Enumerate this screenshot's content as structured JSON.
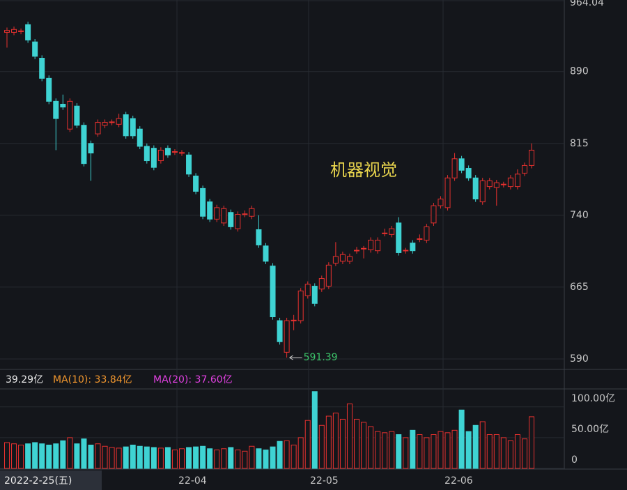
{
  "chart_data": {
    "type": "candlestick",
    "title": "机器视觉",
    "open": [
      931,
      931,
      932,
      939,
      921,
      904,
      883,
      859,
      856,
      830,
      854,
      834,
      815,
      825,
      834,
      837,
      835,
      845,
      841,
      830,
      812,
      810,
      797,
      810,
      806,
      805,
      803,
      781,
      768,
      754,
      736,
      732,
      743,
      726,
      741,
      739,
      725,
      708,
      687,
      630,
      597,
      630,
      630,
      656,
      666,
      663,
      666,
      690,
      692,
      692,
      703,
      705,
      704,
      703,
      721,
      720,
      732,
      703,
      711,
      715,
      714,
      732,
      750,
      748,
      779,
      799,
      789,
      779,
      754,
      770,
      769,
      772,
      770,
      770,
      784,
      792
    ],
    "high": [
      936,
      937,
      935,
      942,
      924,
      907,
      886,
      862,
      866,
      862,
      857,
      837,
      818,
      840,
      840,
      840,
      846,
      848,
      844,
      833,
      815,
      813,
      811,
      813,
      809,
      808,
      806,
      784,
      771,
      757,
      751,
      750,
      746,
      744,
      745,
      750,
      740,
      711,
      690,
      633,
      633,
      636,
      664,
      671,
      669,
      677,
      691,
      712,
      702,
      700,
      707,
      708,
      717,
      717,
      726,
      729,
      738,
      706,
      714,
      720,
      731,
      753,
      760,
      782,
      805,
      802,
      792,
      782,
      779,
      779,
      777,
      775,
      782,
      788,
      795,
      815
    ],
    "low": [
      915,
      928,
      929,
      920,
      903,
      880,
      856,
      808,
      850,
      827,
      831,
      791,
      776,
      822,
      831,
      834,
      832,
      820,
      820,
      809,
      794,
      787,
      794,
      800,
      803,
      802,
      780,
      762,
      736,
      733,
      733,
      729,
      725,
      723,
      738,
      736,
      706,
      689,
      631,
      605,
      591.39,
      620,
      627,
      653,
      645,
      660,
      663,
      687,
      689,
      689,
      700,
      695,
      701,
      700,
      718,
      717,
      698,
      700,
      700,
      712,
      711,
      729,
      747,
      745,
      776,
      784,
      776,
      754,
      751,
      767,
      750,
      769,
      767,
      767,
      781,
      789
    ],
    "close": [
      933,
      934,
      932.5,
      923,
      906,
      883,
      859,
      841,
      853,
      859,
      834,
      794,
      805,
      837,
      837,
      837.5,
      841,
      823,
      823,
      812,
      797,
      790,
      808,
      803,
      806.5,
      805.5,
      783,
      765,
      739,
      736,
      748,
      747,
      728,
      741,
      741.5,
      747,
      709,
      692,
      634,
      608,
      630,
      630.5,
      661,
      668,
      648,
      674,
      688,
      697,
      699,
      697,
      703.5,
      705.5,
      714,
      714,
      721.5,
      726,
      701,
      703.5,
      703,
      715.5,
      728,
      750,
      757,
      779,
      799,
      787,
      779,
      757,
      776,
      776,
      774,
      772.5,
      779,
      783,
      792,
      808
    ],
    "volume": [
      42,
      40,
      38,
      40,
      42,
      40,
      38,
      40,
      45,
      50,
      40,
      48,
      38,
      40,
      36,
      34,
      33,
      35,
      38,
      36,
      35,
      34,
      33,
      34,
      30,
      32,
      34,
      35,
      36,
      32,
      30,
      32,
      34,
      30,
      28,
      36,
      32,
      30,
      35,
      44,
      45,
      38,
      50,
      78,
      125,
      70,
      85,
      90,
      80,
      105,
      80,
      75,
      68,
      60,
      58,
      60,
      55,
      50,
      62,
      55,
      50,
      55,
      60,
      58,
      62,
      95,
      60,
      70,
      76,
      55,
      55,
      50,
      45,
      55,
      48,
      84
    ],
    "ylim": [
      581.26,
      964.04
    ],
    "yticks": [
      590,
      665,
      740,
      815,
      890,
      964.04
    ],
    "vlim": [
      0,
      127
    ],
    "vticks": [
      0,
      {
        "value": 50,
        "label": "50.00亿"
      },
      {
        "value": 100,
        "label": "100.00亿"
      }
    ],
    "low_annotation": 591.39,
    "volume_header": {
      "volume": "39.29亿",
      "ma10": "MA(10): 33.84亿",
      "ma20": "MA(20): 37.60亿"
    },
    "xaxis_labels": [
      "2022-2-25(五)",
      "22-04",
      "22-05",
      "22-06"
    ],
    "up_color": "#e8312f",
    "down_color": "#3fd3d3",
    "grid": true
  }
}
